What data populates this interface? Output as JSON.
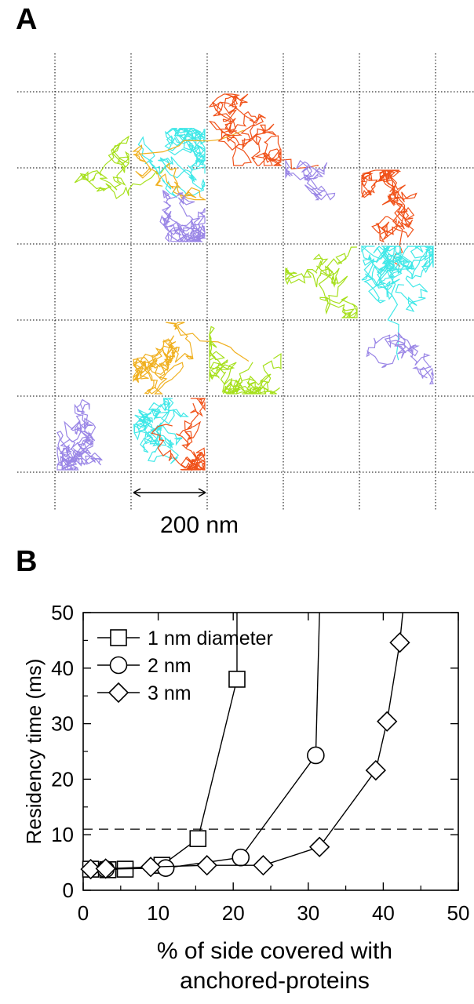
{
  "panel_a": {
    "label": "A",
    "scale_bar_label": "200 nm",
    "trajectory_colors": [
      "#a6e01c",
      "#40e8e8",
      "#f0b020",
      "#f0521a",
      "#9a86e6"
    ]
  },
  "panel_b": {
    "label": "B"
  },
  "chart_data": {
    "type": "line",
    "title": "",
    "xlabel": "% of side covered with anchored-proteins",
    "ylabel": "Residency time (ms)",
    "xlim": [
      0,
      50
    ],
    "ylim": [
      0,
      50
    ],
    "xticks": [
      "0",
      "10",
      "20",
      "30",
      "40",
      "50"
    ],
    "yticks": [
      "0",
      "10",
      "20",
      "30",
      "40",
      "50"
    ],
    "reference_line": {
      "y": 11,
      "style": "dashed"
    },
    "legend_position": "top-left",
    "series": [
      {
        "name": "1 nm diameter",
        "marker": "square",
        "x": [
          1,
          3.3,
          5.6,
          10.5,
          15.3,
          20.5
        ],
        "y": [
          3.8,
          3.7,
          3.8,
          4.5,
          9.3,
          38
        ],
        "tail": [
          20.5,
          50
        ]
      },
      {
        "name": "2 nm",
        "marker": "circle",
        "x": [
          3,
          11,
          21,
          31
        ],
        "y": [
          3.8,
          4,
          5.9,
          24.3
        ],
        "tail": [
          31.5,
          50
        ]
      },
      {
        "name": "3 nm",
        "marker": "diamond",
        "x": [
          1,
          3,
          9,
          16.5,
          24,
          31.5,
          39,
          40.5,
          42.2
        ],
        "y": [
          3.8,
          3.9,
          4.2,
          4.5,
          4.5,
          7.8,
          21.6,
          30.4,
          44.6
        ],
        "tail": [
          42.6,
          50
        ]
      }
    ]
  }
}
